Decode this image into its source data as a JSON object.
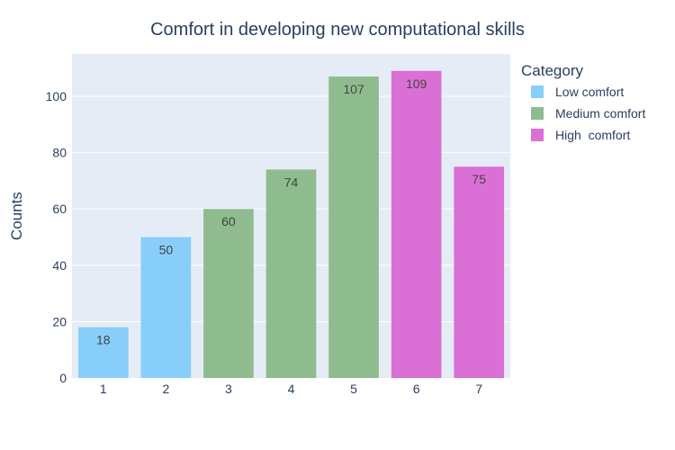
{
  "chart_data": {
    "type": "bar",
    "title": "Comfort in developing new computational skills",
    "xlabel": "",
    "ylabel": "Counts",
    "ylim": [
      0,
      115
    ],
    "yticks": [
      0,
      20,
      40,
      60,
      80,
      100
    ],
    "categories": [
      "1",
      "2",
      "3",
      "4",
      "5",
      "6",
      "7"
    ],
    "values": [
      18,
      50,
      60,
      74,
      107,
      109,
      75
    ],
    "bar_category": [
      "Low comfort",
      "Low comfort",
      "Medium comfort",
      "Medium comfort",
      "Medium comfort",
      "High  comfort",
      "High  comfort"
    ],
    "legend": {
      "title": "Category",
      "placement": "right",
      "entries": [
        {
          "name": "Low comfort",
          "color": "#87cefa"
        },
        {
          "name": "Medium comfort",
          "color": "#8fbc8f"
        },
        {
          "name": "High  comfort",
          "color": "#da70d6"
        }
      ]
    },
    "grid": true,
    "background_color": "#e5ecf6"
  }
}
